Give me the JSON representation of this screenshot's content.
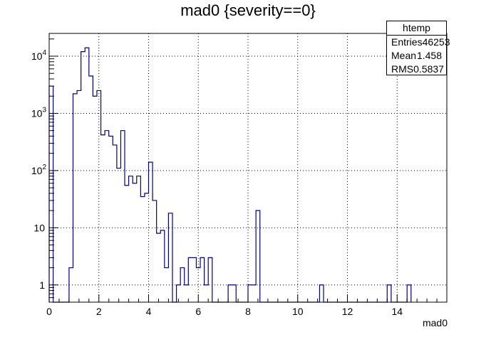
{
  "chart_data": {
    "type": "histogram",
    "title": "mad0 {severity==0}",
    "xlabel": "mad0",
    "ylabel": "",
    "xlim": [
      0,
      16
    ],
    "ylim": [
      0.5,
      25000
    ],
    "yscale": "log",
    "grid": true,
    "x_ticks": [
      "0",
      "2",
      "4",
      "6",
      "8",
      "10",
      "12",
      "14"
    ],
    "y_ticks": [
      {
        "value": 1,
        "base": "1",
        "exp": ""
      },
      {
        "value": 10,
        "base": "10",
        "exp": ""
      },
      {
        "value": 100,
        "base": "10",
        "exp": "2"
      },
      {
        "value": 1000,
        "base": "10",
        "exp": "3"
      },
      {
        "value": 10000,
        "base": "10",
        "exp": "4"
      }
    ],
    "bin_width": 0.16,
    "bins": [
      [
        0.0,
        3000
      ],
      [
        0.8,
        2
      ],
      [
        0.96,
        2200
      ],
      [
        1.12,
        2500
      ],
      [
        1.28,
        12000
      ],
      [
        1.44,
        14000
      ],
      [
        1.6,
        4500
      ],
      [
        1.76,
        2000
      ],
      [
        1.92,
        2500
      ],
      [
        2.08,
        420
      ],
      [
        2.24,
        500
      ],
      [
        2.4,
        400
      ],
      [
        2.56,
        280
      ],
      [
        2.72,
        110
      ],
      [
        2.88,
        500
      ],
      [
        3.04,
        55
      ],
      [
        3.2,
        80
      ],
      [
        3.36,
        60
      ],
      [
        3.52,
        80
      ],
      [
        3.68,
        35
      ],
      [
        3.84,
        40
      ],
      [
        4.0,
        140
      ],
      [
        4.16,
        30
      ],
      [
        4.32,
        8
      ],
      [
        4.48,
        9
      ],
      [
        4.64,
        2
      ],
      [
        4.8,
        18
      ],
      [
        5.12,
        1
      ],
      [
        5.28,
        2
      ],
      [
        5.44,
        1
      ],
      [
        5.6,
        3
      ],
      [
        5.76,
        3
      ],
      [
        5.92,
        2
      ],
      [
        6.08,
        3
      ],
      [
        6.24,
        1
      ],
      [
        6.4,
        3
      ],
      [
        7.2,
        1
      ],
      [
        7.36,
        1
      ],
      [
        8.0,
        1
      ],
      [
        8.16,
        1
      ],
      [
        8.32,
        20
      ],
      [
        10.88,
        1
      ],
      [
        13.6,
        1
      ],
      [
        14.4,
        1
      ]
    ],
    "stats": {
      "title": "htemp",
      "rows": [
        {
          "label": "Entries",
          "value": "46253"
        },
        {
          "label": "Mean",
          "value": "1.458"
        },
        {
          "label": "RMS",
          "value": "0.5837"
        }
      ]
    },
    "colors": {
      "line": "#000080",
      "axis": "#000000",
      "grid": "#000000"
    }
  }
}
